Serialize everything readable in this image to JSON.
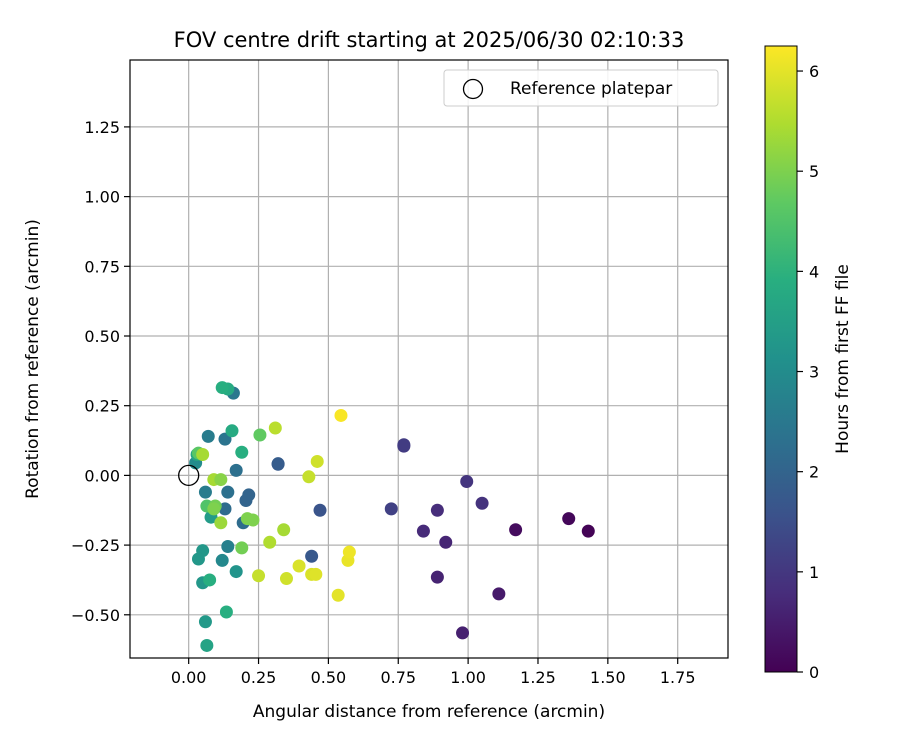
{
  "chart_data": {
    "type": "scatter",
    "title": "FOV centre drift starting at 2025/06/30 02:10:33",
    "xlabel": "Angular distance from reference (arcmin)",
    "ylabel": "Rotation from reference (arcmin)",
    "xlim": [
      -0.21,
      1.93
    ],
    "ylim": [
      -0.655,
      1.49
    ],
    "xticks": [
      0.0,
      0.25,
      0.5,
      0.75,
      1.0,
      1.25,
      1.5,
      1.75
    ],
    "xtick_labels": [
      "0.00",
      "0.25",
      "0.50",
      "0.75",
      "1.00",
      "1.25",
      "1.50",
      "1.75"
    ],
    "yticks": [
      -0.5,
      -0.25,
      0.0,
      0.25,
      0.5,
      0.75,
      1.0,
      1.25
    ],
    "ytick_labels": [
      "−0.50",
      "−0.25",
      "0.00",
      "0.25",
      "0.50",
      "0.75",
      "1.00",
      "1.25"
    ],
    "grid": true,
    "legend": {
      "placement": "top-right",
      "entries": [
        "Reference platepar"
      ]
    },
    "reference_point": {
      "x": 0.0,
      "y": 0.0,
      "label": "Reference platepar"
    },
    "colorbar": {
      "label": "Hours from first FF file",
      "range": [
        0,
        6.25
      ],
      "ticks": [
        0,
        1,
        2,
        3,
        4,
        5,
        6
      ],
      "tick_labels": [
        "0",
        "1",
        "2",
        "3",
        "4",
        "5",
        "6"
      ],
      "colormap": "viridis"
    },
    "points": [
      {
        "x": 1.43,
        "y": -0.2,
        "h": 0.05
      },
      {
        "x": 1.36,
        "y": -0.155,
        "h": 0.1
      },
      {
        "x": 1.17,
        "y": -0.195,
        "h": 0.2
      },
      {
        "x": 1.11,
        "y": -0.425,
        "h": 0.45
      },
      {
        "x": 0.98,
        "y": -0.565,
        "h": 0.55
      },
      {
        "x": 0.89,
        "y": -0.365,
        "h": 0.6
      },
      {
        "x": 0.92,
        "y": -0.24,
        "h": 0.65
      },
      {
        "x": 0.84,
        "y": -0.2,
        "h": 0.75
      },
      {
        "x": 0.89,
        "y": -0.125,
        "h": 0.8
      },
      {
        "x": 1.05,
        "y": -0.1,
        "h": 0.9
      },
      {
        "x": 0.995,
        "y": -0.022,
        "h": 0.95
      },
      {
        "x": 0.77,
        "y": 0.105,
        "h": 1.05
      },
      {
        "x": 0.77,
        "y": 0.11,
        "h": 1.1
      },
      {
        "x": 0.725,
        "y": -0.12,
        "h": 1.2
      },
      {
        "x": 0.47,
        "y": -0.125,
        "h": 1.6
      },
      {
        "x": 0.44,
        "y": -0.29,
        "h": 1.7
      },
      {
        "x": 0.32,
        "y": 0.04,
        "h": 1.75
      },
      {
        "x": 0.32,
        "y": 0.042,
        "h": 1.8
      },
      {
        "x": 0.215,
        "y": -0.07,
        "h": 2.0
      },
      {
        "x": 0.205,
        "y": -0.09,
        "h": 2.0
      },
      {
        "x": 0.195,
        "y": -0.17,
        "h": 2.2
      },
      {
        "x": 0.17,
        "y": 0.018,
        "h": 2.3
      },
      {
        "x": 0.14,
        "y": -0.06,
        "h": 2.3
      },
      {
        "x": 0.13,
        "y": -0.12,
        "h": 2.2
      },
      {
        "x": 0.13,
        "y": 0.13,
        "h": 2.4
      },
      {
        "x": 0.16,
        "y": 0.295,
        "h": 2.5
      },
      {
        "x": 0.07,
        "y": 0.14,
        "h": 2.6
      },
      {
        "x": 0.06,
        "y": -0.06,
        "h": 2.6
      },
      {
        "x": 0.14,
        "y": -0.255,
        "h": 2.7
      },
      {
        "x": 0.12,
        "y": -0.305,
        "h": 2.9
      },
      {
        "x": 0.17,
        "y": -0.345,
        "h": 3.2
      },
      {
        "x": 0.05,
        "y": -0.27,
        "h": 3.3
      },
      {
        "x": 0.035,
        "y": -0.3,
        "h": 3.3
      },
      {
        "x": 0.05,
        "y": -0.385,
        "h": 3.3
      },
      {
        "x": 0.06,
        "y": -0.525,
        "h": 3.35
      },
      {
        "x": 0.08,
        "y": -0.15,
        "h": 3.4
      },
      {
        "x": 0.065,
        "y": -0.61,
        "h": 3.6
      },
      {
        "x": 0.025,
        "y": 0.045,
        "h": 3.0
      },
      {
        "x": 0.03,
        "y": 0.075,
        "h": 3.7
      },
      {
        "x": 0.075,
        "y": -0.375,
        "h": 3.9
      },
      {
        "x": 0.14,
        "y": 0.31,
        "h": 3.8
      },
      {
        "x": 0.12,
        "y": 0.315,
        "h": 3.9
      },
      {
        "x": 0.155,
        "y": 0.16,
        "h": 3.8
      },
      {
        "x": 0.19,
        "y": 0.083,
        "h": 3.9
      },
      {
        "x": 0.135,
        "y": -0.49,
        "h": 3.9
      },
      {
        "x": 0.035,
        "y": 0.08,
        "h": 4.6
      },
      {
        "x": 0.065,
        "y": -0.11,
        "h": 4.5
      },
      {
        "x": 0.255,
        "y": 0.145,
        "h": 4.7
      },
      {
        "x": 0.095,
        "y": -0.11,
        "h": 4.9
      },
      {
        "x": 0.09,
        "y": -0.12,
        "h": 5.0
      },
      {
        "x": 0.19,
        "y": -0.26,
        "h": 4.9
      },
      {
        "x": 0.21,
        "y": -0.155,
        "h": 5.0
      },
      {
        "x": 0.23,
        "y": -0.16,
        "h": 5.0
      },
      {
        "x": 0.115,
        "y": -0.17,
        "h": 5.3
      },
      {
        "x": 0.05,
        "y": 0.075,
        "h": 5.4
      },
      {
        "x": 0.09,
        "y": -0.015,
        "h": 5.4
      },
      {
        "x": 0.115,
        "y": -0.015,
        "h": 5.1
      },
      {
        "x": 0.29,
        "y": -0.24,
        "h": 5.5
      },
      {
        "x": 0.34,
        "y": -0.195,
        "h": 5.4
      },
      {
        "x": 0.31,
        "y": 0.17,
        "h": 5.6
      },
      {
        "x": 0.43,
        "y": -0.005,
        "h": 5.7
      },
      {
        "x": 0.46,
        "y": 0.05,
        "h": 5.8
      },
      {
        "x": 0.25,
        "y": -0.36,
        "h": 5.7
      },
      {
        "x": 0.35,
        "y": -0.37,
        "h": 5.8
      },
      {
        "x": 0.395,
        "y": -0.325,
        "h": 5.9
      },
      {
        "x": 0.44,
        "y": -0.355,
        "h": 5.9
      },
      {
        "x": 0.455,
        "y": -0.355,
        "h": 5.95
      },
      {
        "x": 0.535,
        "y": -0.43,
        "h": 6.0
      },
      {
        "x": 0.57,
        "y": -0.305,
        "h": 6.05
      },
      {
        "x": 0.575,
        "y": -0.275,
        "h": 6.1
      },
      {
        "x": 0.545,
        "y": 0.215,
        "h": 6.2
      }
    ]
  }
}
